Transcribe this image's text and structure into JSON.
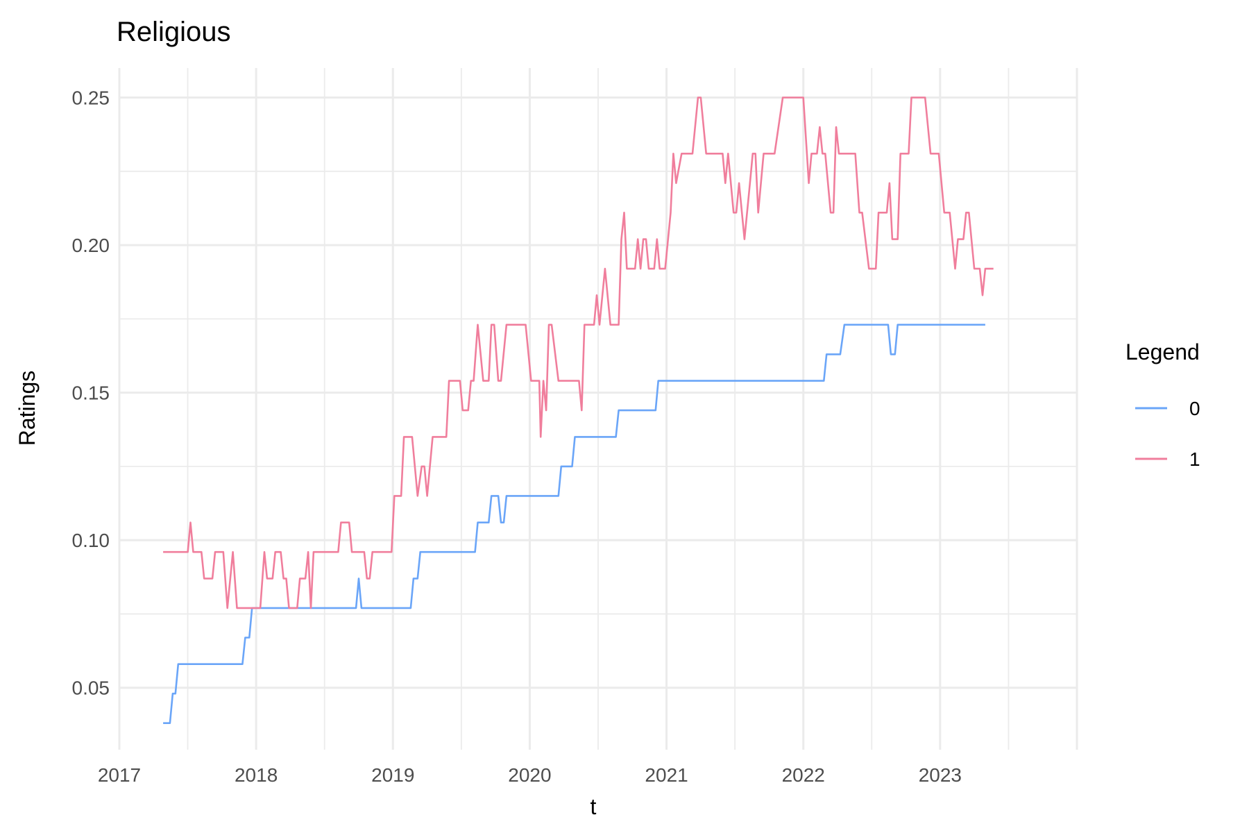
{
  "chart_data": {
    "type": "line",
    "title": "Religious",
    "xlabel": "t",
    "ylabel": "Ratings",
    "xlim": [
      2017.0,
      2024.0
    ],
    "ylim": [
      0.029,
      0.26
    ],
    "x_ticks": [
      2017,
      2018,
      2019,
      2020,
      2021,
      2022,
      2023
    ],
    "x_tick_labels": [
      "2017",
      "2018",
      "2019",
      "2020",
      "2021",
      "2022",
      "2023"
    ],
    "y_ticks": [
      0.05,
      0.1,
      0.15,
      0.2,
      0.25
    ],
    "y_tick_labels": [
      "0.05",
      "0.10",
      "0.15",
      "0.20",
      "0.25"
    ],
    "grid": true,
    "legend": {
      "title": "Legend",
      "position": "right"
    },
    "series": [
      {
        "name": "0",
        "color": "#6aa5f8",
        "points": [
          [
            2017.32,
            0.038
          ],
          [
            2017.37,
            0.038
          ],
          [
            2017.39,
            0.048
          ],
          [
            2017.41,
            0.048
          ],
          [
            2017.43,
            0.058
          ],
          [
            2017.9,
            0.058
          ],
          [
            2017.92,
            0.067
          ],
          [
            2017.95,
            0.067
          ],
          [
            2017.97,
            0.077
          ],
          [
            2018.73,
            0.077
          ],
          [
            2018.75,
            0.087
          ],
          [
            2018.77,
            0.077
          ],
          [
            2019.13,
            0.077
          ],
          [
            2019.15,
            0.087
          ],
          [
            2019.18,
            0.087
          ],
          [
            2019.2,
            0.096
          ],
          [
            2019.6,
            0.096
          ],
          [
            2019.62,
            0.106
          ],
          [
            2019.7,
            0.106
          ],
          [
            2019.72,
            0.115
          ],
          [
            2019.77,
            0.115
          ],
          [
            2019.79,
            0.106
          ],
          [
            2019.81,
            0.106
          ],
          [
            2019.83,
            0.115
          ],
          [
            2020.21,
            0.115
          ],
          [
            2020.23,
            0.125
          ],
          [
            2020.31,
            0.125
          ],
          [
            2020.33,
            0.135
          ],
          [
            2020.63,
            0.135
          ],
          [
            2020.65,
            0.144
          ],
          [
            2020.92,
            0.144
          ],
          [
            2020.94,
            0.154
          ],
          [
            2022.15,
            0.154
          ],
          [
            2022.17,
            0.163
          ],
          [
            2022.27,
            0.163
          ],
          [
            2022.3,
            0.173
          ],
          [
            2022.62,
            0.173
          ],
          [
            2022.64,
            0.163
          ],
          [
            2022.67,
            0.163
          ],
          [
            2022.69,
            0.173
          ],
          [
            2023.33,
            0.173
          ]
        ]
      },
      {
        "name": "1",
        "color": "#f07e9c",
        "points": [
          [
            2017.32,
            0.096
          ],
          [
            2017.5,
            0.096
          ],
          [
            2017.52,
            0.106
          ],
          [
            2017.54,
            0.096
          ],
          [
            2017.6,
            0.096
          ],
          [
            2017.62,
            0.087
          ],
          [
            2017.68,
            0.087
          ],
          [
            2017.7,
            0.096
          ],
          [
            2017.76,
            0.096
          ],
          [
            2017.79,
            0.077
          ],
          [
            2017.83,
            0.096
          ],
          [
            2017.86,
            0.077
          ],
          [
            2018.03,
            0.077
          ],
          [
            2018.06,
            0.096
          ],
          [
            2018.08,
            0.087
          ],
          [
            2018.12,
            0.087
          ],
          [
            2018.14,
            0.096
          ],
          [
            2018.18,
            0.096
          ],
          [
            2018.2,
            0.087
          ],
          [
            2018.22,
            0.087
          ],
          [
            2018.24,
            0.077
          ],
          [
            2018.3,
            0.077
          ],
          [
            2018.32,
            0.087
          ],
          [
            2018.36,
            0.087
          ],
          [
            2018.38,
            0.096
          ],
          [
            2018.4,
            0.077
          ],
          [
            2018.42,
            0.096
          ],
          [
            2018.6,
            0.096
          ],
          [
            2018.62,
            0.106
          ],
          [
            2018.68,
            0.106
          ],
          [
            2018.7,
            0.096
          ],
          [
            2018.79,
            0.096
          ],
          [
            2018.81,
            0.087
          ],
          [
            2018.83,
            0.087
          ],
          [
            2018.85,
            0.096
          ],
          [
            2018.99,
            0.096
          ],
          [
            2019.01,
            0.115
          ],
          [
            2019.06,
            0.115
          ],
          [
            2019.08,
            0.135
          ],
          [
            2019.14,
            0.135
          ],
          [
            2019.18,
            0.115
          ],
          [
            2019.21,
            0.125
          ],
          [
            2019.23,
            0.125
          ],
          [
            2019.25,
            0.115
          ],
          [
            2019.29,
            0.135
          ],
          [
            2019.39,
            0.135
          ],
          [
            2019.41,
            0.154
          ],
          [
            2019.49,
            0.154
          ],
          [
            2019.51,
            0.144
          ],
          [
            2019.55,
            0.144
          ],
          [
            2019.57,
            0.154
          ],
          [
            2019.59,
            0.154
          ],
          [
            2019.62,
            0.173
          ],
          [
            2019.66,
            0.154
          ],
          [
            2019.7,
            0.154
          ],
          [
            2019.72,
            0.173
          ],
          [
            2019.74,
            0.173
          ],
          [
            2019.77,
            0.154
          ],
          [
            2019.79,
            0.154
          ],
          [
            2019.83,
            0.173
          ],
          [
            2019.97,
            0.173
          ],
          [
            2020.01,
            0.154
          ],
          [
            2020.07,
            0.154
          ],
          [
            2020.08,
            0.135
          ],
          [
            2020.1,
            0.154
          ],
          [
            2020.12,
            0.144
          ],
          [
            2020.14,
            0.173
          ],
          [
            2020.16,
            0.173
          ],
          [
            2020.21,
            0.154
          ],
          [
            2020.36,
            0.154
          ],
          [
            2020.38,
            0.144
          ],
          [
            2020.4,
            0.173
          ],
          [
            2020.47,
            0.173
          ],
          [
            2020.49,
            0.183
          ],
          [
            2020.51,
            0.173
          ],
          [
            2020.55,
            0.192
          ],
          [
            2020.59,
            0.173
          ],
          [
            2020.65,
            0.173
          ],
          [
            2020.67,
            0.202
          ],
          [
            2020.69,
            0.211
          ],
          [
            2020.71,
            0.192
          ],
          [
            2020.77,
            0.192
          ],
          [
            2020.79,
            0.202
          ],
          [
            2020.81,
            0.192
          ],
          [
            2020.83,
            0.202
          ],
          [
            2020.85,
            0.202
          ],
          [
            2020.87,
            0.192
          ],
          [
            2020.91,
            0.192
          ],
          [
            2020.93,
            0.202
          ],
          [
            2020.95,
            0.192
          ],
          [
            2020.99,
            0.192
          ],
          [
            2021.03,
            0.211
          ],
          [
            2021.05,
            0.231
          ],
          [
            2021.07,
            0.221
          ],
          [
            2021.11,
            0.231
          ],
          [
            2021.19,
            0.231
          ],
          [
            2021.23,
            0.25
          ],
          [
            2021.25,
            0.25
          ],
          [
            2021.29,
            0.231
          ],
          [
            2021.41,
            0.231
          ],
          [
            2021.43,
            0.221
          ],
          [
            2021.45,
            0.231
          ],
          [
            2021.49,
            0.211
          ],
          [
            2021.51,
            0.211
          ],
          [
            2021.53,
            0.221
          ],
          [
            2021.57,
            0.202
          ],
          [
            2021.61,
            0.221
          ],
          [
            2021.63,
            0.231
          ],
          [
            2021.65,
            0.231
          ],
          [
            2021.67,
            0.211
          ],
          [
            2021.71,
            0.231
          ],
          [
            2021.79,
            0.231
          ],
          [
            2021.85,
            0.25
          ],
          [
            2022.0,
            0.25
          ],
          [
            2022.04,
            0.221
          ],
          [
            2022.06,
            0.231
          ],
          [
            2022.1,
            0.231
          ],
          [
            2022.12,
            0.24
          ],
          [
            2022.14,
            0.231
          ],
          [
            2022.16,
            0.231
          ],
          [
            2022.2,
            0.211
          ],
          [
            2022.22,
            0.211
          ],
          [
            2022.24,
            0.24
          ],
          [
            2022.26,
            0.231
          ],
          [
            2022.38,
            0.231
          ],
          [
            2022.41,
            0.211
          ],
          [
            2022.43,
            0.211
          ],
          [
            2022.48,
            0.192
          ],
          [
            2022.53,
            0.192
          ],
          [
            2022.55,
            0.211
          ],
          [
            2022.61,
            0.211
          ],
          [
            2022.63,
            0.221
          ],
          [
            2022.65,
            0.202
          ],
          [
            2022.69,
            0.202
          ],
          [
            2022.71,
            0.231
          ],
          [
            2022.77,
            0.231
          ],
          [
            2022.79,
            0.25
          ],
          [
            2022.89,
            0.25
          ],
          [
            2022.93,
            0.231
          ],
          [
            2022.99,
            0.231
          ],
          [
            2023.03,
            0.211
          ],
          [
            2023.07,
            0.211
          ],
          [
            2023.11,
            0.192
          ],
          [
            2023.13,
            0.202
          ],
          [
            2023.17,
            0.202
          ],
          [
            2023.19,
            0.211
          ],
          [
            2023.21,
            0.211
          ],
          [
            2023.25,
            0.192
          ],
          [
            2023.29,
            0.192
          ],
          [
            2023.31,
            0.183
          ],
          [
            2023.33,
            0.192
          ],
          [
            2023.39,
            0.192
          ]
        ]
      }
    ]
  }
}
